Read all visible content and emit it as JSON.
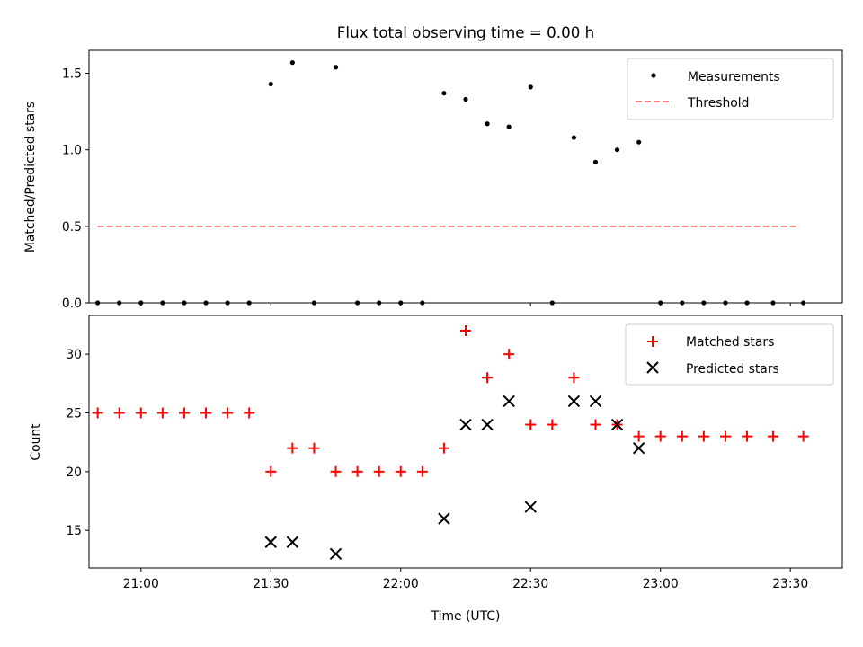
{
  "chart_data": [
    {
      "type": "scatter",
      "title": "Flux total observing time = 0.00 h",
      "xlabel": "",
      "ylabel": "Matched/Predicted stars",
      "ylim": [
        0,
        1.65
      ],
      "xlim": [
        "20:48",
        "23:42"
      ],
      "y_ticks": [
        "0.0",
        "0.5",
        "1.0",
        "1.5"
      ],
      "legend_position": "top-right",
      "series": [
        {
          "name": "Measurements",
          "marker": "dot",
          "color": "#000000",
          "points": [
            [
              "20:50",
              0
            ],
            [
              "20:55",
              0
            ],
            [
              "21:00",
              0
            ],
            [
              "21:05",
              0
            ],
            [
              "21:10",
              0
            ],
            [
              "21:15",
              0
            ],
            [
              "21:20",
              0
            ],
            [
              "21:25",
              0
            ],
            [
              "21:30",
              1.43
            ],
            [
              "21:35",
              1.57
            ],
            [
              "21:40",
              0
            ],
            [
              "21:45",
              1.54
            ],
            [
              "21:50",
              0
            ],
            [
              "21:55",
              0
            ],
            [
              "22:00",
              0
            ],
            [
              "22:05",
              0
            ],
            [
              "22:10",
              1.37
            ],
            [
              "22:15",
              1.33
            ],
            [
              "22:20",
              1.17
            ],
            [
              "22:25",
              1.15
            ],
            [
              "22:30",
              1.41
            ],
            [
              "22:35",
              0
            ],
            [
              "22:40",
              1.08
            ],
            [
              "22:45",
              0.92
            ],
            [
              "22:50",
              1.0
            ],
            [
              "22:55",
              1.05
            ],
            [
              "23:00",
              0
            ],
            [
              "23:05",
              0
            ],
            [
              "23:10",
              0
            ],
            [
              "23:15",
              0
            ],
            [
              "23:20",
              0
            ],
            [
              "23:26",
              0
            ],
            [
              "23:33",
              0
            ]
          ]
        },
        {
          "name": "Threshold",
          "marker": "dashed-line",
          "color": "#ff7f7f",
          "points": [
            [
              "20:50",
              0.5
            ],
            [
              "23:32",
              0.5
            ]
          ]
        }
      ]
    },
    {
      "type": "scatter",
      "title": "",
      "xlabel": "Time (UTC)",
      "ylabel": "Count",
      "ylim": [
        11.8,
        33.3
      ],
      "xlim": [
        "20:48",
        "23:42"
      ],
      "y_ticks": [
        "15",
        "20",
        "25",
        "30"
      ],
      "x_ticks": [
        "21:00",
        "21:30",
        "22:00",
        "22:30",
        "23:00",
        "23:30"
      ],
      "legend_position": "top-right",
      "series": [
        {
          "name": "Matched stars",
          "marker": "plus",
          "color": "#ff0000",
          "points": [
            [
              "20:50",
              25
            ],
            [
              "20:55",
              25
            ],
            [
              "21:00",
              25
            ],
            [
              "21:05",
              25
            ],
            [
              "21:10",
              25
            ],
            [
              "21:15",
              25
            ],
            [
              "21:20",
              25
            ],
            [
              "21:25",
              25
            ],
            [
              "21:30",
              20
            ],
            [
              "21:35",
              22
            ],
            [
              "21:40",
              22
            ],
            [
              "21:45",
              20
            ],
            [
              "21:50",
              20
            ],
            [
              "21:55",
              20
            ],
            [
              "22:00",
              20
            ],
            [
              "22:05",
              20
            ],
            [
              "22:10",
              22
            ],
            [
              "22:15",
              32
            ],
            [
              "22:20",
              28
            ],
            [
              "22:25",
              30
            ],
            [
              "22:30",
              24
            ],
            [
              "22:35",
              24
            ],
            [
              "22:40",
              28
            ],
            [
              "22:45",
              24
            ],
            [
              "22:50",
              24
            ],
            [
              "22:55",
              23
            ],
            [
              "23:00",
              23
            ],
            [
              "23:05",
              23
            ],
            [
              "23:10",
              23
            ],
            [
              "23:15",
              23
            ],
            [
              "23:20",
              23
            ],
            [
              "23:26",
              23
            ],
            [
              "23:33",
              23
            ]
          ]
        },
        {
          "name": "Predicted stars",
          "marker": "x",
          "color": "#000000",
          "points": [
            [
              "21:30",
              14
            ],
            [
              "21:35",
              14
            ],
            [
              "21:45",
              13
            ],
            [
              "22:10",
              16
            ],
            [
              "22:15",
              24
            ],
            [
              "22:20",
              24
            ],
            [
              "22:25",
              26
            ],
            [
              "22:30",
              17
            ],
            [
              "22:40",
              26
            ],
            [
              "22:45",
              26
            ],
            [
              "22:50",
              24
            ],
            [
              "22:55",
              22
            ]
          ]
        }
      ]
    }
  ]
}
